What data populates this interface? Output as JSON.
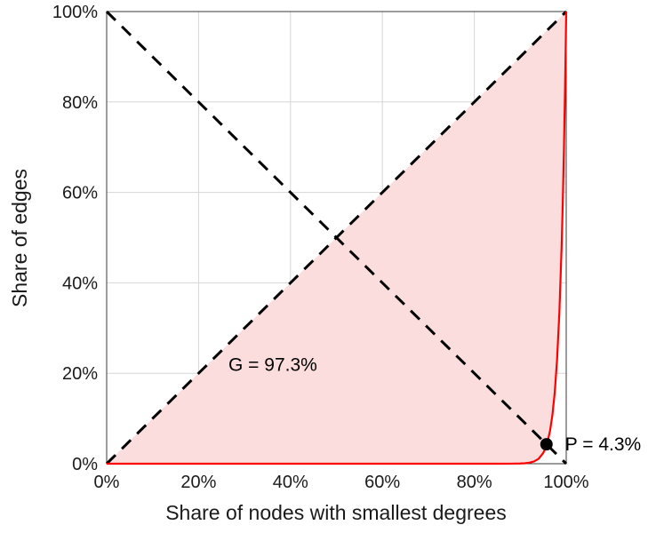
{
  "chart_data": {
    "type": "line",
    "title": "",
    "xlabel": "Share of nodes with smallest degrees",
    "ylabel": "Share of edges",
    "xlim": [
      0,
      1
    ],
    "ylim": [
      0,
      1
    ],
    "grid": true,
    "legend": "none",
    "x_ticks": {
      "values": [
        0,
        0.2,
        0.4,
        0.6,
        0.8,
        1.0
      ],
      "labels": [
        "0%",
        "20%",
        "40%",
        "60%",
        "80%",
        "100%"
      ]
    },
    "y_ticks": {
      "values": [
        0,
        0.2,
        0.4,
        0.6,
        0.8,
        1.0
      ],
      "labels": [
        "0%",
        "20%",
        "40%",
        "60%",
        "80%",
        "100%"
      ]
    },
    "colors": {
      "curve": "#ff0000",
      "dashed": "#000000",
      "fill": "#fbdddd",
      "marker": "#000000",
      "grid": "#d6d6d6",
      "frame": "#3a3a3a"
    },
    "series": [
      {
        "name": "equality-diagonal",
        "type": "dashed-line",
        "color": "#000000",
        "points": [
          [
            0,
            0
          ],
          [
            1,
            1
          ]
        ]
      },
      {
        "name": "anti-diagonal",
        "type": "dashed-line",
        "color": "#000000",
        "points": [
          [
            0,
            1
          ],
          [
            1,
            0
          ]
        ]
      },
      {
        "name": "lorenz-curve",
        "type": "line",
        "color": "#ff0000",
        "points": [
          [
            0,
            0
          ],
          [
            0.05,
            0
          ],
          [
            0.1,
            0
          ],
          [
            0.15,
            0
          ],
          [
            0.2,
            0
          ],
          [
            0.25,
            0
          ],
          [
            0.3,
            0
          ],
          [
            0.35,
            0
          ],
          [
            0.4,
            0
          ],
          [
            0.45,
            0
          ],
          [
            0.5,
            0
          ],
          [
            0.55,
            0
          ],
          [
            0.6,
            0
          ],
          [
            0.65,
            0
          ],
          [
            0.7,
            0
          ],
          [
            0.75,
            0
          ],
          [
            0.8,
            0
          ],
          [
            0.82,
            0
          ],
          [
            0.84,
            0
          ],
          [
            0.86,
            0
          ],
          [
            0.88,
            0.0001
          ],
          [
            0.9,
            0.0005
          ],
          [
            0.91,
            0.001
          ],
          [
            0.92,
            0.0023
          ],
          [
            0.93,
            0.005
          ],
          [
            0.94,
            0.0109
          ],
          [
            0.95,
            0.0237
          ],
          [
            0.955,
            0.0347
          ],
          [
            0.96,
            0.0508
          ],
          [
            0.965,
            0.0742
          ],
          [
            0.97,
            0.1082
          ],
          [
            0.975,
            0.1575
          ],
          [
            0.98,
            0.2288
          ],
          [
            0.985,
            0.3318
          ],
          [
            0.99,
            0.4801
          ],
          [
            0.9925,
            0.5772
          ],
          [
            0.995,
            0.6936
          ],
          [
            0.9975,
            0.833
          ],
          [
            0.999,
            0.9296
          ],
          [
            1,
            1
          ]
        ]
      }
    ],
    "fill_between": {
      "upper": "equality-diagonal",
      "lower": "lorenz-curve",
      "color": "#fbdddd"
    },
    "annotations": {
      "gini": {
        "text": "G = 97.3%",
        "x": 0.265,
        "y": 0.205,
        "value_percent": 97.3
      },
      "p_point": {
        "text": "P = 4.3%",
        "x": 0.957,
        "y": 0.043,
        "value_percent": 4.3,
        "marker": "circle",
        "marker_color": "#000000"
      }
    }
  }
}
